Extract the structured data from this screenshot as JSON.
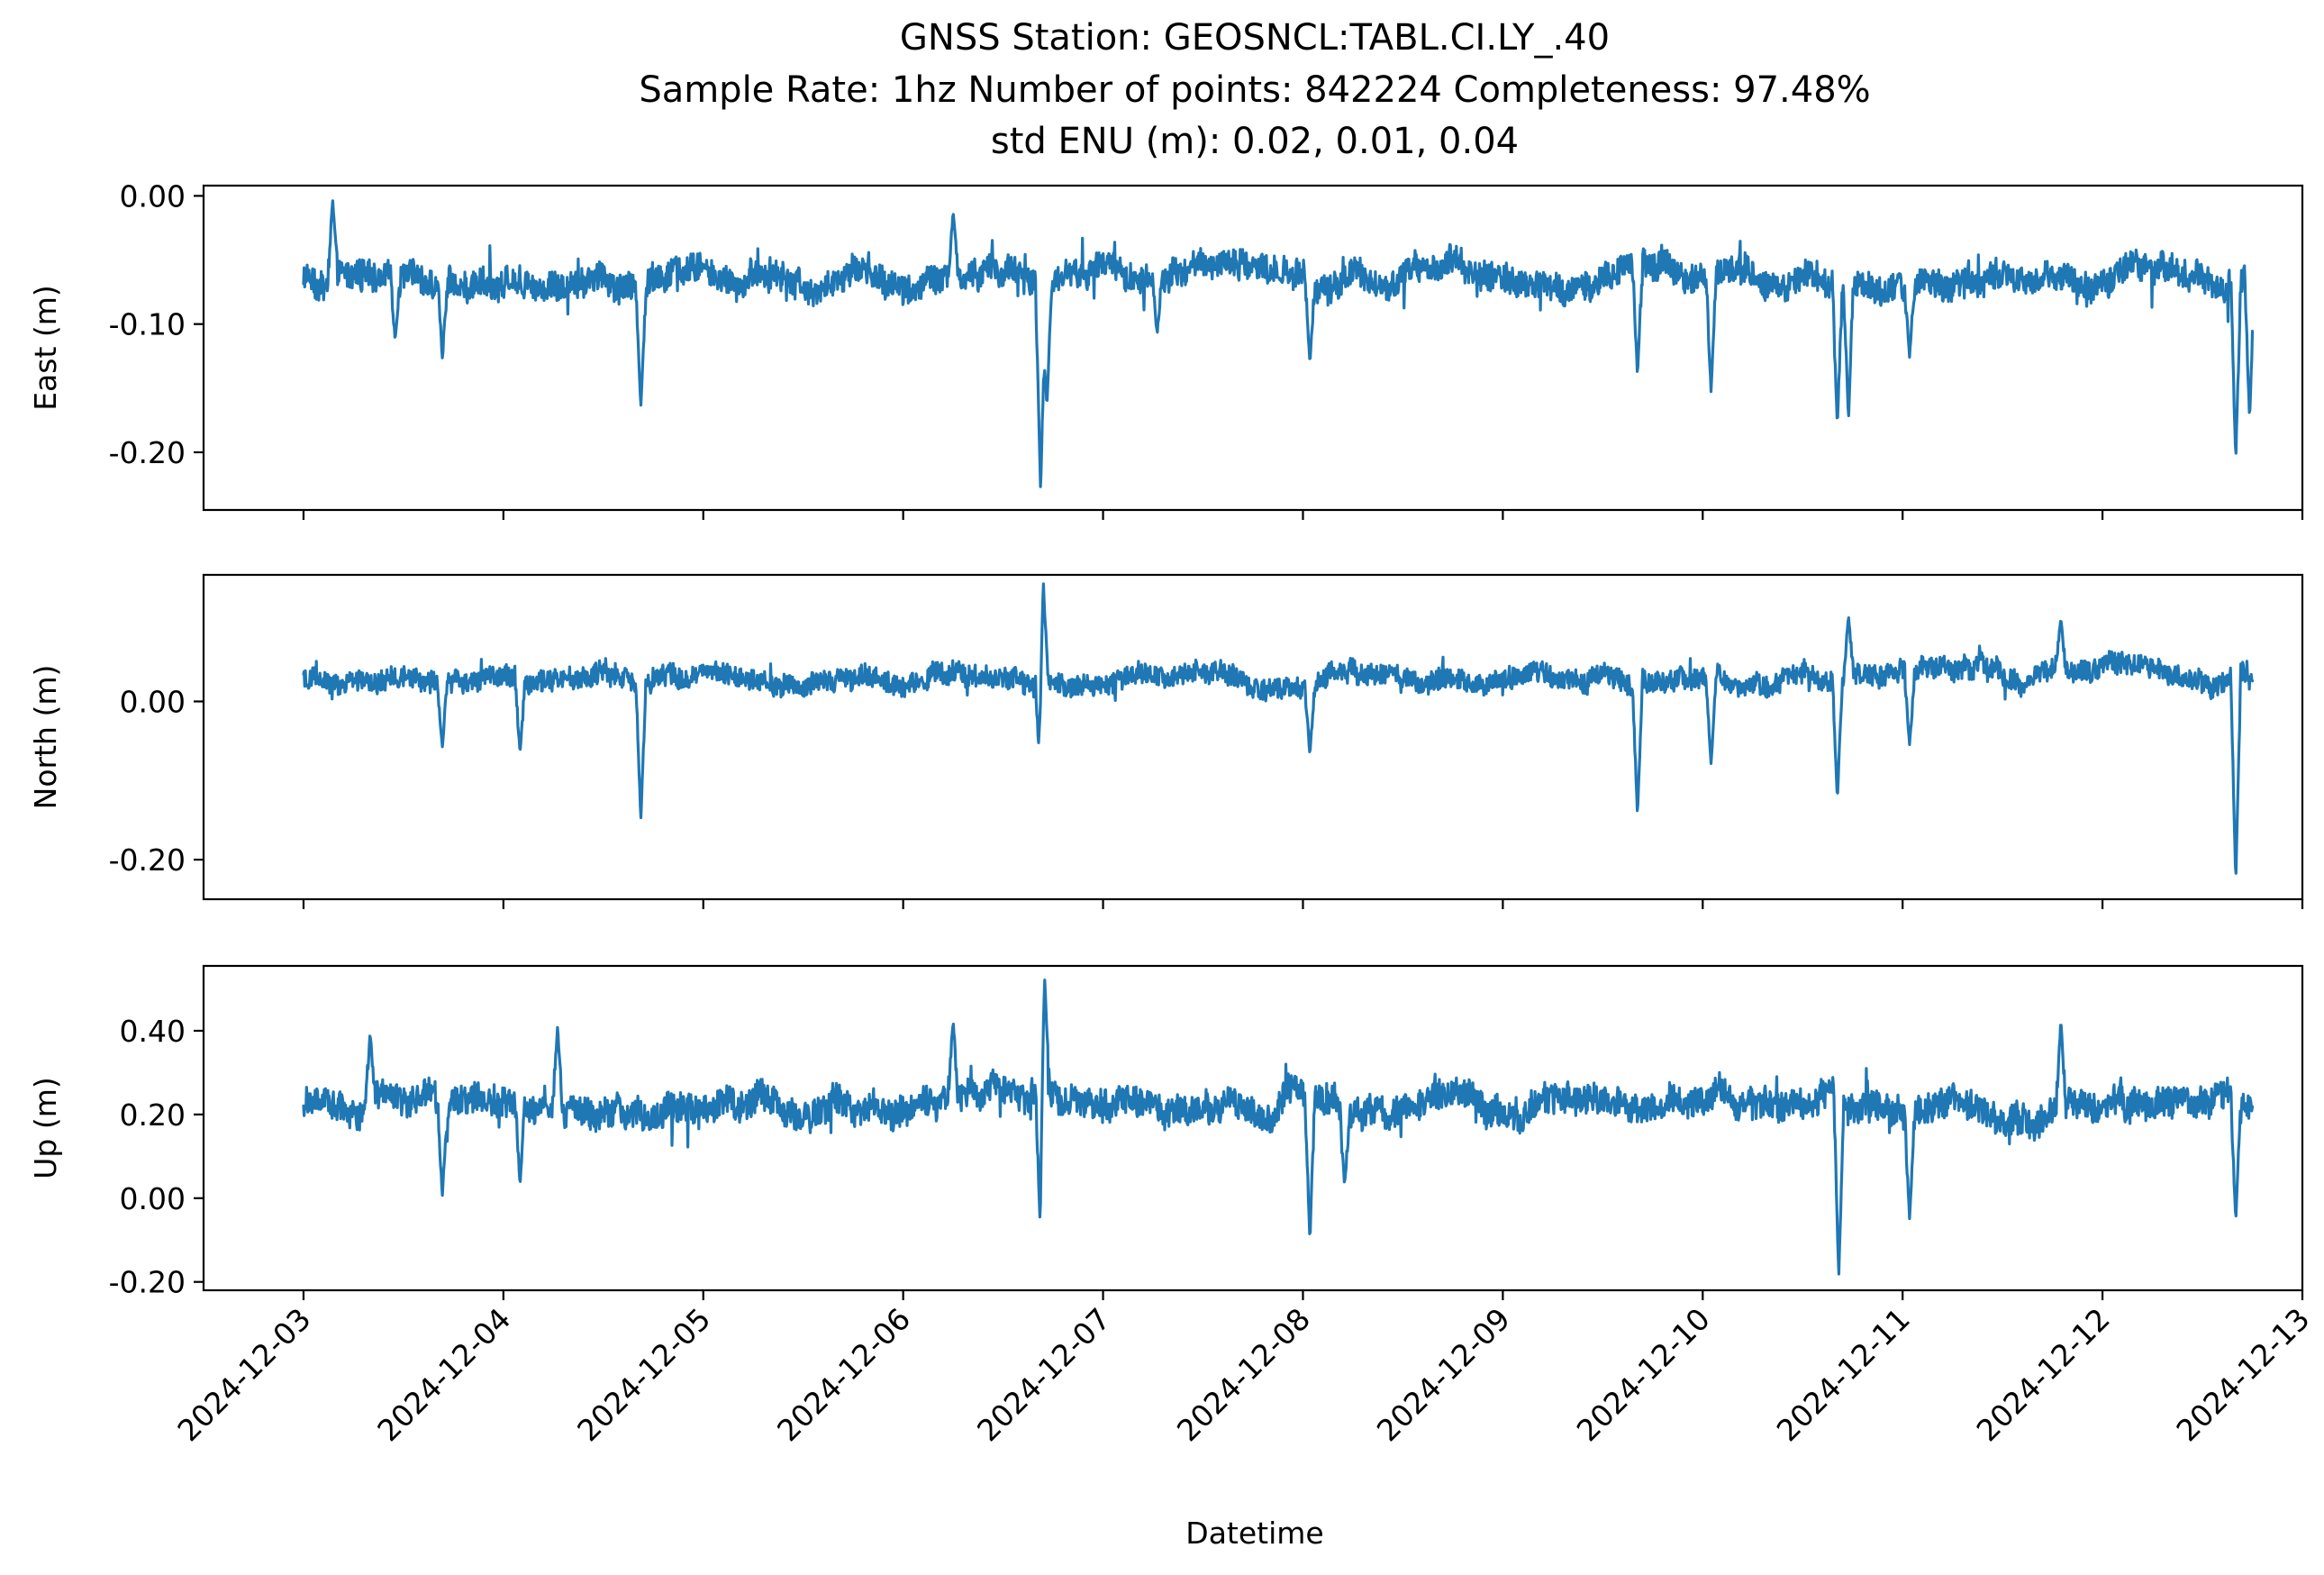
{
  "figure": {
    "title_lines": [
      "GNSS Station: GEOSNCL:TABL.CI.LY_.40",
      "Sample Rate: 1hz   Number of points: 842224    Completeness:  97.48%",
      "std ENU (m):  0.02, 0.01, 0.04"
    ],
    "xlabel": "Datetime",
    "line_color": "#1f77b4"
  },
  "chart_data": [
    {
      "type": "line",
      "name": "east",
      "ylabel": "East (m)",
      "ylim": [
        -0.245,
        0.008
      ],
      "yticks": [
        0.0,
        -0.1,
        -0.2
      ],
      "ytick_labels": [
        "0.00",
        "-0.10",
        "-0.20"
      ],
      "xlim": [
        "2024-12-02 12:00",
        "2024-12-13 00:00"
      ],
      "xticks_visible": false,
      "baseline": -0.063,
      "noise": 0.011,
      "x_start": "2024-12-03 00:00",
      "x_end": "2024-12-12 18:00",
      "events": [
        {
          "x": "2024-12-03 03:30",
          "y": -0.003
        },
        {
          "x": "2024-12-03 11:00",
          "y": -0.113
        },
        {
          "x": "2024-12-03 16:40",
          "y": -0.127
        },
        {
          "x": "2024-12-04 16:30",
          "y": -0.165
        },
        {
          "x": "2024-12-06 06:00",
          "y": -0.012
        },
        {
          "x": "2024-12-06 16:30",
          "y": -0.232
        },
        {
          "x": "2024-12-06 17:15",
          "y": -0.165
        },
        {
          "x": "2024-12-07 06:30",
          "y": -0.108
        },
        {
          "x": "2024-12-08 00:50",
          "y": -0.131
        },
        {
          "x": "2024-12-09 16:10",
          "y": -0.14
        },
        {
          "x": "2024-12-10 01:00",
          "y": -0.154
        },
        {
          "x": "2024-12-10 16:10",
          "y": -0.18
        },
        {
          "x": "2024-12-10 17:30",
          "y": -0.175
        },
        {
          "x": "2024-12-11 00:50",
          "y": -0.126
        },
        {
          "x": "2024-12-12 16:00",
          "y": -0.207
        },
        {
          "x": "2024-12-12 17:40",
          "y": -0.175
        }
      ]
    },
    {
      "type": "line",
      "name": "north",
      "ylabel": "North (m)",
      "ylim": [
        -0.25,
        0.16
      ],
      "yticks": [
        0.0,
        -0.2
      ],
      "ytick_labels": [
        "0.00",
        "-0.20"
      ],
      "xlim": [
        "2024-12-02 12:00",
        "2024-12-13 00:00"
      ],
      "xticks_visible": false,
      "baseline": 0.028,
      "noise": 0.013,
      "x_start": "2024-12-03 00:00",
      "x_end": "2024-12-12 18:00",
      "events": [
        {
          "x": "2024-12-03 16:40",
          "y": -0.058
        },
        {
          "x": "2024-12-04 02:00",
          "y": -0.066
        },
        {
          "x": "2024-12-04 16:30",
          "y": -0.15
        },
        {
          "x": "2024-12-06 16:30",
          "y": -0.115
        },
        {
          "x": "2024-12-06 16:50",
          "y": 0.153
        },
        {
          "x": "2024-12-08 00:50",
          "y": -0.068
        },
        {
          "x": "2024-12-09 16:10",
          "y": -0.145
        },
        {
          "x": "2024-12-10 01:00",
          "y": -0.08
        },
        {
          "x": "2024-12-10 16:10",
          "y": -0.125
        },
        {
          "x": "2024-12-10 17:30",
          "y": 0.108
        },
        {
          "x": "2024-12-11 00:50",
          "y": -0.055
        },
        {
          "x": "2024-12-11 19:00",
          "y": 0.105
        },
        {
          "x": "2024-12-12 16:00",
          "y": -0.228
        }
      ]
    },
    {
      "type": "line",
      "name": "up",
      "ylabel": "Up (m)",
      "ylim": [
        -0.22,
        0.555
      ],
      "yticks": [
        0.4,
        0.2,
        0.0,
        -0.2
      ],
      "ytick_labels": [
        "0.40",
        "0.20",
        "0.00",
        "-0.20"
      ],
      "xlim": [
        "2024-12-02 12:00",
        "2024-12-13 00:00"
      ],
      "xticks_visible": true,
      "xticks": [
        "2024-12-03",
        "2024-12-04",
        "2024-12-05",
        "2024-12-06",
        "2024-12-07",
        "2024-12-08",
        "2024-12-09",
        "2024-12-10",
        "2024-12-11",
        "2024-12-12",
        "2024-12-13"
      ],
      "baseline": 0.225,
      "noise": 0.035,
      "x_start": "2024-12-03 00:00",
      "x_end": "2024-12-12 18:00",
      "events": [
        {
          "x": "2024-12-03 08:00",
          "y": 0.395
        },
        {
          "x": "2024-12-03 16:40",
          "y": 0.005
        },
        {
          "x": "2024-12-04 02:00",
          "y": 0.03
        },
        {
          "x": "2024-12-04 06:30",
          "y": 0.41
        },
        {
          "x": "2024-12-06 06:00",
          "y": 0.425
        },
        {
          "x": "2024-12-06 16:30",
          "y": -0.11
        },
        {
          "x": "2024-12-06 17:00",
          "y": 0.525
        },
        {
          "x": "2024-12-08 00:50",
          "y": -0.105
        },
        {
          "x": "2024-12-08 05:00",
          "y": 0.03
        },
        {
          "x": "2024-12-10 16:20",
          "y": -0.193
        },
        {
          "x": "2024-12-11 00:50",
          "y": -0.05
        },
        {
          "x": "2024-12-11 19:00",
          "y": 0.425
        },
        {
          "x": "2024-12-12 16:00",
          "y": -0.055
        }
      ]
    }
  ]
}
